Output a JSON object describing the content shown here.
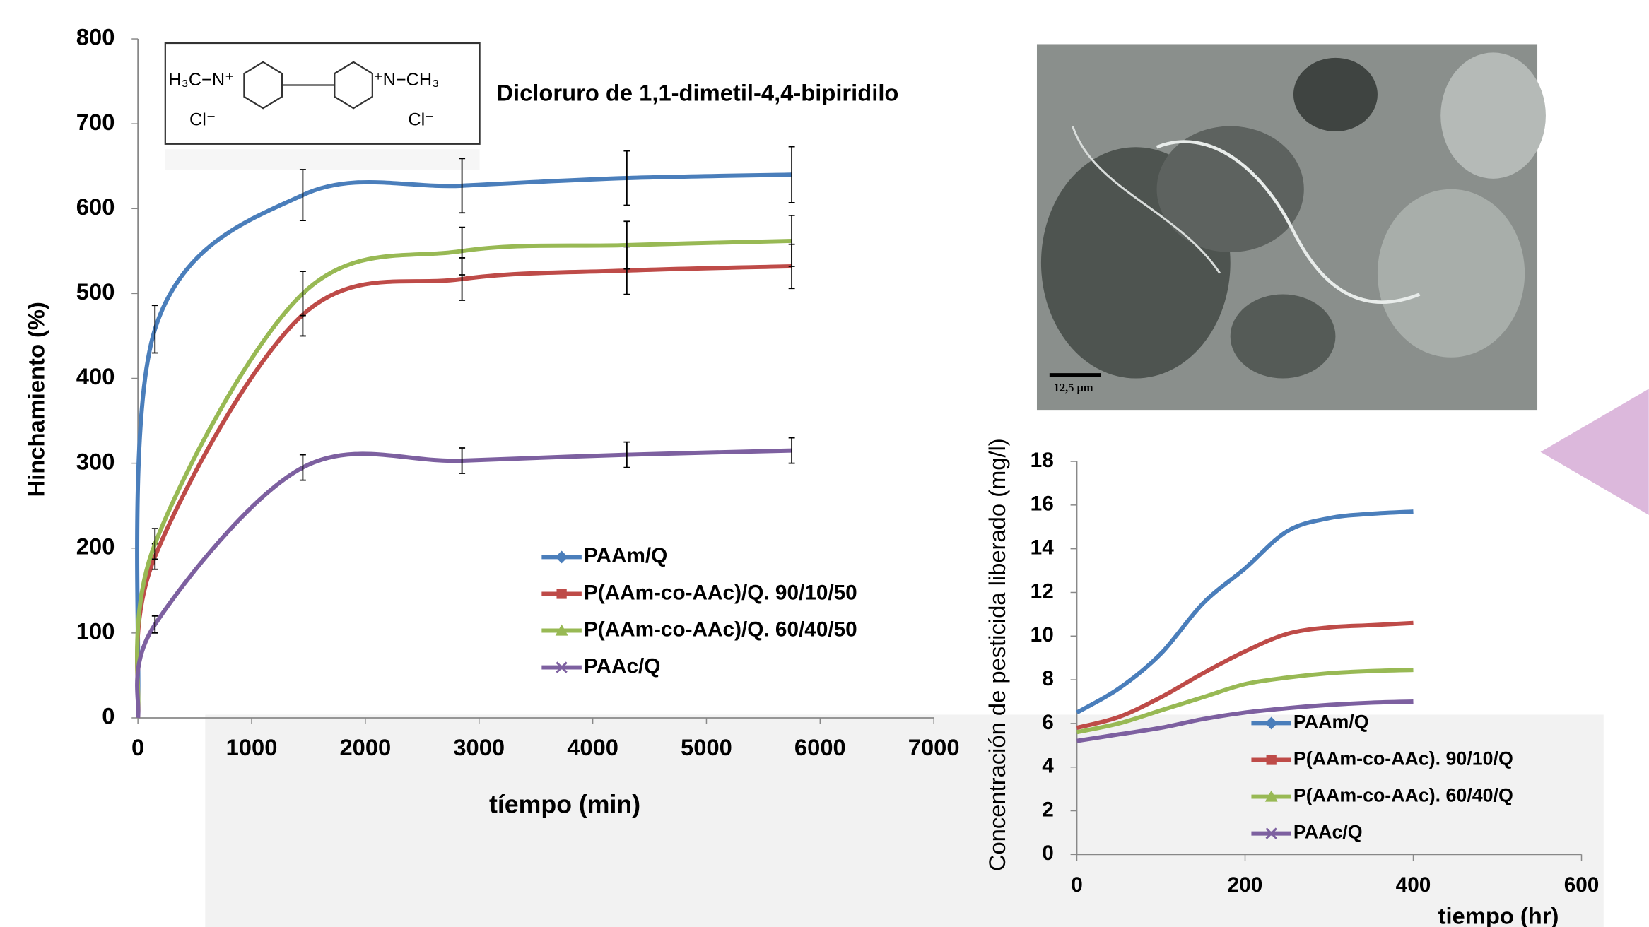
{
  "structure": {
    "labels": [
      "H₃C−N⁺",
      "⁺N−CH₃",
      "Cl⁻",
      "Cl⁻"
    ],
    "name": "Dicloruro de 1,1-dimetil-4,4-bipiridilo"
  },
  "image": {
    "scale_label": "12,5 µm"
  },
  "chart_data": [
    {
      "type": "line",
      "smooth": true,
      "x_label": "tíempo (min)",
      "y_label": "Hinchamiento (%)",
      "xlim": [
        0,
        7000
      ],
      "xticks": [
        0,
        1000,
        2000,
        3000,
        4000,
        5000,
        6000,
        7000
      ],
      "ylim": [
        0,
        800
      ],
      "yticks": [
        0,
        100,
        200,
        300,
        400,
        500,
        600,
        700,
        800
      ],
      "grid": false,
      "legend": "center-right",
      "x": [
        0,
        150,
        1450,
        2850,
        4300,
        5750
      ],
      "series": [
        {
          "name": "PAAm/Q",
          "color": "#4a7ebb",
          "marker": "diamond",
          "values": [
            0,
            458,
            616,
            627,
            636,
            640
          ],
          "errors": [
            null,
            28,
            30,
            32,
            32,
            33
          ]
        },
        {
          "name": "P(AAm-co-AAc)/Q. 90/10/50",
          "color": "#be4b48",
          "marker": "square",
          "values": [
            0,
            190,
            475,
            517,
            527,
            532
          ],
          "errors": [
            null,
            15,
            25,
            25,
            28,
            26
          ]
        },
        {
          "name": "P(AAm-co-AAc)/Q. 60/40/50",
          "color": "#98b954",
          "marker": "triangle",
          "values": [
            0,
            205,
            500,
            550,
            557,
            562
          ],
          "errors": [
            null,
            18,
            26,
            28,
            28,
            30
          ]
        },
        {
          "name": "PAAc/Q",
          "color": "#7d60a0",
          "marker": "x",
          "values": [
            0,
            110,
            295,
            303,
            310,
            315
          ],
          "errors": [
            null,
            10,
            15,
            15,
            15,
            15
          ]
        }
      ]
    },
    {
      "type": "line",
      "smooth": true,
      "x_label": "tiempo (hr)",
      "y_label": "Concentración de pesticida liberado (mg/l)",
      "xlim": [
        0,
        600
      ],
      "xticks": [
        0,
        200,
        400,
        600
      ],
      "ylim": [
        0,
        18
      ],
      "yticks": [
        0,
        2,
        4,
        6,
        8,
        10,
        12,
        14,
        16,
        18
      ],
      "grid": false,
      "legend": "lower-right",
      "x": [
        0,
        50,
        100,
        150,
        200,
        250,
        300,
        350,
        400
      ],
      "series": [
        {
          "name": "PAAm/Q",
          "color": "#4a7ebb",
          "marker": "diamond",
          "values": [
            6.5,
            7.6,
            9.2,
            11.5,
            13.1,
            14.8,
            15.4,
            15.6,
            15.7
          ]
        },
        {
          "name": "P(AAm-co-AAc). 90/10/Q",
          "color": "#be4b48",
          "marker": "square",
          "values": [
            5.8,
            6.3,
            7.2,
            8.3,
            9.3,
            10.1,
            10.4,
            10.5,
            10.6
          ]
        },
        {
          "name": "P(AAm-co-AAc). 60/40/Q",
          "color": "#98b954",
          "marker": "triangle",
          "values": [
            5.6,
            6.0,
            6.6,
            7.2,
            7.8,
            8.1,
            8.3,
            8.4,
            8.45
          ]
        },
        {
          "name": "PAAc/Q",
          "color": "#7d60a0",
          "marker": "x",
          "values": [
            5.2,
            5.5,
            5.8,
            6.2,
            6.5,
            6.7,
            6.85,
            6.95,
            7.0
          ]
        }
      ]
    }
  ]
}
